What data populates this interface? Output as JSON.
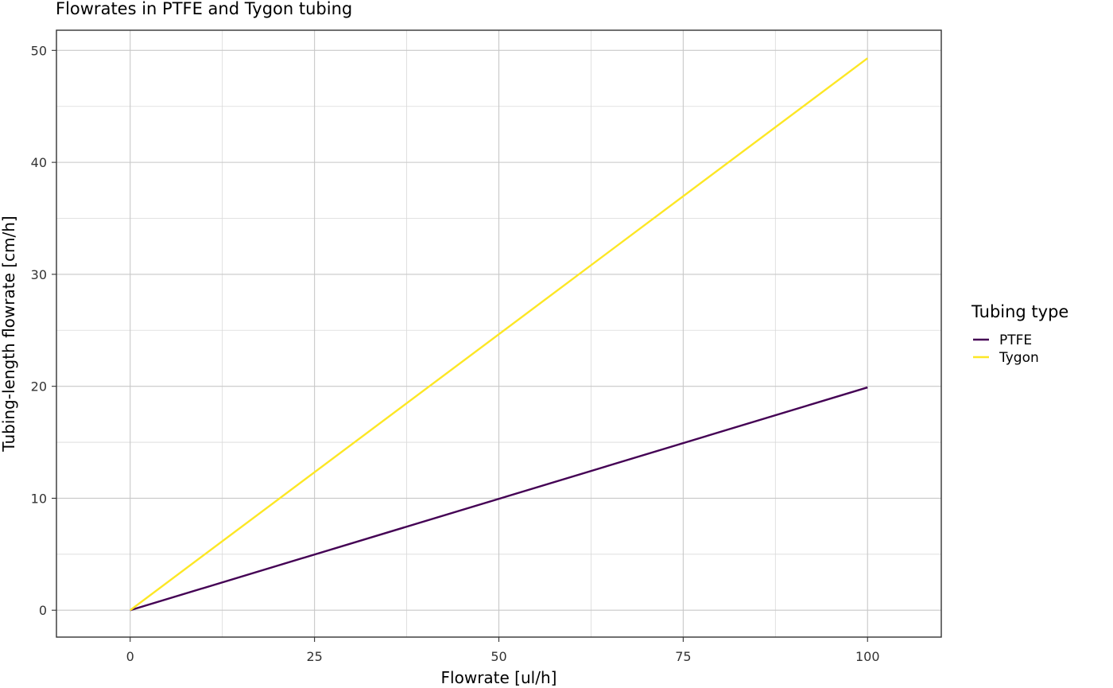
{
  "chart_data": {
    "type": "line",
    "title": "Flowrates in PTFE and Tygon tubing",
    "xlabel": "Flowrate [ul/h]",
    "ylabel": "Tubing-length flowrate [cm/h]",
    "xlim": [
      -10,
      110
    ],
    "ylim": [
      -2.4,
      51.8
    ],
    "x_ticks": [
      0,
      25,
      50,
      75,
      100
    ],
    "y_ticks": [
      0,
      10,
      20,
      30,
      40,
      50
    ],
    "x_tick_labels": [
      "0",
      "25",
      "50",
      "75",
      "100"
    ],
    "y_tick_labels": [
      "0",
      "10",
      "20",
      "30",
      "40",
      "50"
    ],
    "grid": true,
    "legend": {
      "title": "Tubing type",
      "position": "right",
      "entries": [
        "PTFE",
        "Tygon"
      ]
    },
    "series": [
      {
        "name": "PTFE",
        "color": "#440154",
        "x": [
          0,
          100
        ],
        "y": [
          0,
          19.9
        ]
      },
      {
        "name": "Tygon",
        "color": "#FDE725",
        "x": [
          0,
          100
        ],
        "y": [
          0,
          49.3
        ]
      }
    ]
  }
}
